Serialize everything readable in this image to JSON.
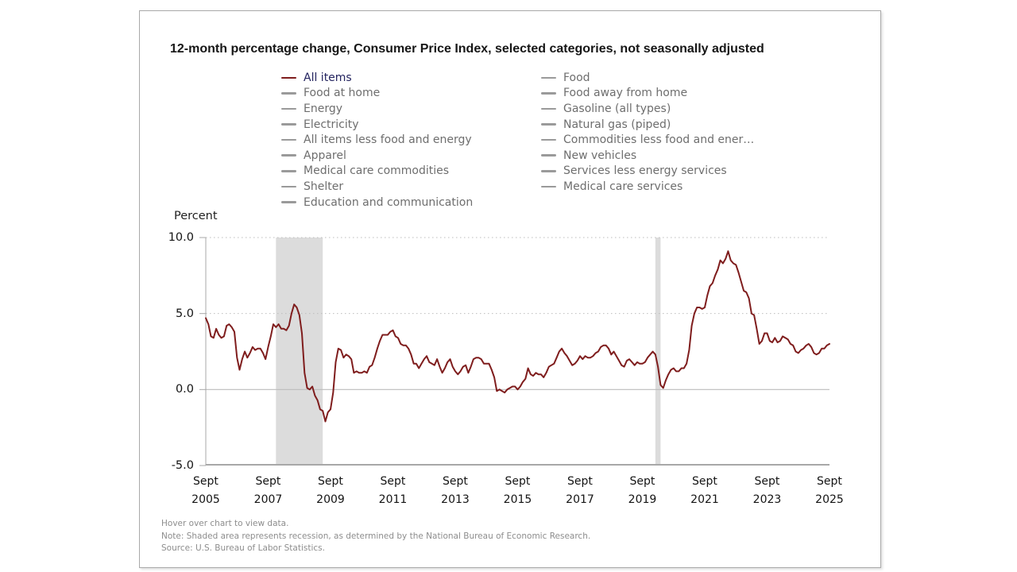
{
  "title": "12-month percentage change, Consumer Price Index, selected categories, not seasonally adjusted",
  "y_axis_title": "Percent",
  "legend": {
    "columns": [
      [
        {
          "label": "All items",
          "active": true
        },
        {
          "label": "Food at home",
          "active": false
        },
        {
          "label": "Energy",
          "active": false
        },
        {
          "label": "Electricity",
          "active": false
        },
        {
          "label": "All items less food and energy",
          "active": false
        },
        {
          "label": "Apparel",
          "active": false
        },
        {
          "label": "Medical care commodities",
          "active": false
        },
        {
          "label": "Shelter",
          "active": false
        },
        {
          "label": "Education and communication",
          "active": false
        }
      ],
      [
        {
          "label": "Food",
          "active": false
        },
        {
          "label": "Food away from home",
          "active": false
        },
        {
          "label": "Gasoline (all types)",
          "active": false
        },
        {
          "label": "Natural gas (piped)",
          "active": false
        },
        {
          "label": "Commodities less food and ener…",
          "active": false
        },
        {
          "label": "New vehicles",
          "active": false
        },
        {
          "label": "Services less energy services",
          "active": false
        },
        {
          "label": "Medical care services",
          "active": false
        }
      ]
    ]
  },
  "footer": {
    "hover_hint": "Hover over chart to view data.",
    "note": "Note: Shaded area represents recession, as determined by the National Bureau of Economic Research.",
    "source": "Source: U.S. Bureau of Labor Statistics."
  },
  "colors": {
    "line": "#7f1d1d",
    "active_legend_text": "#23235f",
    "inactive_legend_text": "#6e6e6e",
    "inactive_swatch": "#9a9a9a",
    "recession_band": "#dcdcdc",
    "grid": "#bdbdbd",
    "axis": "#a8a8a8"
  },
  "chart_data": {
    "type": "line",
    "title": "12-month percentage change, Consumer Price Index, selected categories, not seasonally adjusted",
    "ylabel": "Percent",
    "ylim": [
      -5,
      10
    ],
    "grid": "dotted-horizontal",
    "legend_position": "top",
    "y_ticks": [
      {
        "label": "10.0",
        "value": 10
      },
      {
        "label": "5.0",
        "value": 5
      },
      {
        "label": "0.0",
        "value": 0
      },
      {
        "label": "-5.0",
        "value": -5
      }
    ],
    "x_ticks": [
      {
        "month": "Sept",
        "year": "2005",
        "month_index": 0
      },
      {
        "month": "Sept",
        "year": "2007",
        "month_index": 24
      },
      {
        "month": "Sept",
        "year": "2009",
        "month_index": 48
      },
      {
        "month": "Sept",
        "year": "2011",
        "month_index": 72
      },
      {
        "month": "Sept",
        "year": "2013",
        "month_index": 96
      },
      {
        "month": "Sept",
        "year": "2015",
        "month_index": 120
      },
      {
        "month": "Sept",
        "year": "2017",
        "month_index": 144
      },
      {
        "month": "Sept",
        "year": "2019",
        "month_index": 168
      },
      {
        "month": "Sept",
        "year": "2021",
        "month_index": 192
      },
      {
        "month": "Sept",
        "year": "2023",
        "month_index": 216
      },
      {
        "month": "Sept",
        "year": "2025",
        "month_index": 240
      }
    ],
    "x_range": {
      "start": "2005-09",
      "end": "2025-09",
      "frequency": "monthly"
    },
    "recession_bands": [
      {
        "from": "2007-12",
        "to": "2009-06"
      },
      {
        "from": "2020-02",
        "to": "2020-04"
      }
    ],
    "series": [
      {
        "name": "All items",
        "color": "#7f1d1d",
        "values": [
          4.7,
          4.3,
          3.5,
          3.4,
          4.0,
          3.6,
          3.4,
          3.5,
          4.2,
          4.3,
          4.1,
          3.8,
          2.1,
          1.3,
          2.0,
          2.5,
          2.1,
          2.4,
          2.8,
          2.6,
          2.7,
          2.7,
          2.4,
          2.0,
          2.8,
          3.5,
          4.3,
          4.1,
          4.3,
          4.0,
          4.0,
          3.9,
          4.2,
          5.0,
          5.6,
          5.4,
          4.9,
          3.7,
          1.1,
          0.1,
          0.0,
          0.2,
          -0.4,
          -0.7,
          -1.3,
          -1.4,
          -2.1,
          -1.5,
          -1.3,
          -0.2,
          1.8,
          2.7,
          2.6,
          2.1,
          2.3,
          2.2,
          2.0,
          1.1,
          1.2,
          1.1,
          1.1,
          1.2,
          1.1,
          1.5,
          1.6,
          2.1,
          2.7,
          3.2,
          3.6,
          3.6,
          3.6,
          3.8,
          3.9,
          3.5,
          3.4,
          3.0,
          2.9,
          2.9,
          2.7,
          2.3,
          1.7,
          1.7,
          1.4,
          1.7,
          2.0,
          2.2,
          1.8,
          1.7,
          1.6,
          2.0,
          1.5,
          1.1,
          1.4,
          1.8,
          2.0,
          1.5,
          1.2,
          1.0,
          1.2,
          1.5,
          1.6,
          1.1,
          1.5,
          2.0,
          2.1,
          2.1,
          2.0,
          1.7,
          1.7,
          1.7,
          1.3,
          0.8,
          -0.1,
          0.0,
          -0.1,
          -0.2,
          0.0,
          0.1,
          0.2,
          0.2,
          0.0,
          0.2,
          0.5,
          0.7,
          1.4,
          1.0,
          0.9,
          1.1,
          1.0,
          1.0,
          0.8,
          1.1,
          1.5,
          1.6,
          1.7,
          2.1,
          2.5,
          2.7,
          2.4,
          2.2,
          1.9,
          1.6,
          1.7,
          1.9,
          2.2,
          2.0,
          2.2,
          2.1,
          2.1,
          2.2,
          2.4,
          2.5,
          2.8,
          2.9,
          2.9,
          2.7,
          2.3,
          2.5,
          2.2,
          1.9,
          1.6,
          1.5,
          1.9,
          2.0,
          1.8,
          1.6,
          1.8,
          1.7,
          1.7,
          1.8,
          2.1,
          2.3,
          2.5,
          2.3,
          1.5,
          0.3,
          0.1,
          0.6,
          1.0,
          1.3,
          1.4,
          1.2,
          1.2,
          1.4,
          1.4,
          1.7,
          2.6,
          4.2,
          5.0,
          5.4,
          5.4,
          5.3,
          5.4,
          6.2,
          6.8,
          7.0,
          7.5,
          7.9,
          8.5,
          8.3,
          8.6,
          9.1,
          8.5,
          8.3,
          8.2,
          7.7,
          7.1,
          6.5,
          6.4,
          6.0,
          5.0,
          4.9,
          4.0,
          3.0,
          3.2,
          3.7,
          3.7,
          3.2,
          3.1,
          3.4,
          3.1,
          3.2,
          3.5,
          3.4,
          3.3,
          3.0,
          2.9,
          2.5,
          2.4,
          2.6,
          2.7,
          2.9,
          3.0,
          2.8,
          2.4,
          2.3,
          2.4,
          2.7,
          2.7,
          2.9,
          3.0
        ]
      }
    ]
  }
}
